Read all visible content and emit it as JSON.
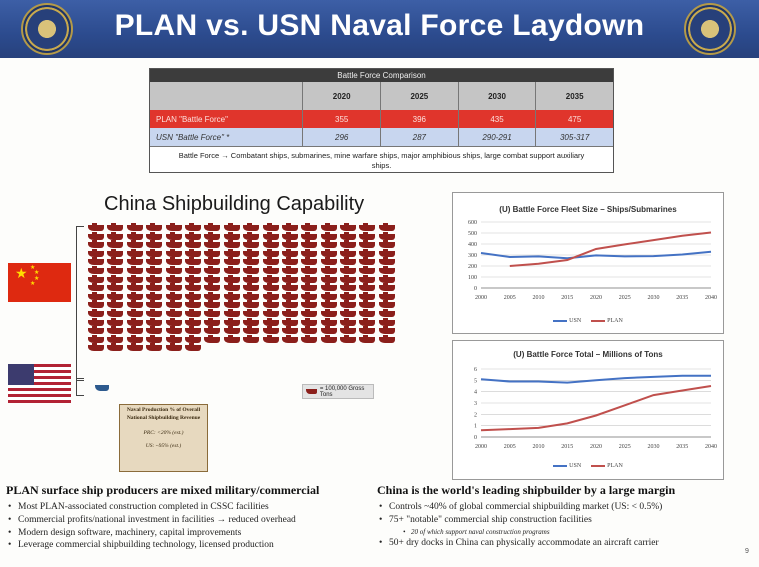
{
  "header": {
    "title": "PLAN vs. USN Naval Force Laydown",
    "accent": "#2c4b8e"
  },
  "comparison": {
    "caption": "Battle Force Comparison",
    "years": [
      "2020",
      "2025",
      "2030",
      "2035"
    ],
    "rows": [
      {
        "label": "PLAN \"Battle Force\"",
        "values": [
          "355",
          "396",
          "435",
          "475"
        ]
      },
      {
        "label": "USN \"Battle Force\" *",
        "values": [
          "296",
          "287",
          "290-291",
          "305-317"
        ]
      }
    ],
    "footnote": "Battle Force → Combatant ships, submarines, mine warfare ships, major amphibious ships, large combat support auxiliary ships."
  },
  "shipbuilding": {
    "title": "China Shipbuilding Capability",
    "china_ship_icons": 230,
    "us_ship_icons": 1,
    "legend": "= 100,000 Gross Tons",
    "production_box": {
      "title": "Naval Production % of Overall National Shipbuilding Revenue",
      "prc": "PRC: <20% (est.)",
      "us": "US: ~95% (est.)"
    }
  },
  "chart_data": [
    {
      "type": "line",
      "title": "(U) Battle Force Fleet Size – Ships/Submarines",
      "x": [
        2000,
        2005,
        2010,
        2015,
        2020,
        2025,
        2030,
        2035,
        2040
      ],
      "ylim": [
        0,
        600
      ],
      "yticks": [
        "600",
        "500",
        "400",
        "300",
        "200",
        "100",
        "0"
      ],
      "xticks": [
        "2000",
        "2005",
        "2010",
        "2015",
        "2020",
        "2025",
        "2030",
        "2035",
        "2040"
      ],
      "series": [
        {
          "name": "USN",
          "color": "#4472c4",
          "values": [
            318,
            282,
            287,
            271,
            296,
            287,
            290,
            305,
            330
          ]
        },
        {
          "name": "PLAN",
          "color": "#c0504d",
          "values": [
            null,
            200,
            220,
            255,
            355,
            396,
            435,
            475,
            505
          ]
        }
      ],
      "legend": "bottom",
      "grid": true
    },
    {
      "type": "line",
      "title": "(U) Battle Force Total – Millions of Tons",
      "x": [
        2000,
        2005,
        2010,
        2015,
        2020,
        2025,
        2030,
        2035,
        2040
      ],
      "ylim": [
        0,
        6
      ],
      "yticks": [
        "6",
        "5",
        "4",
        "3",
        "2",
        "1",
        "0"
      ],
      "xticks": [
        "2000",
        "2005",
        "2010",
        "2015",
        "2020",
        "2025",
        "2030",
        "2035",
        "2040"
      ],
      "series": [
        {
          "name": "USN",
          "color": "#4472c4",
          "values": [
            5.1,
            4.9,
            4.9,
            4.8,
            5.0,
            5.2,
            5.3,
            5.4,
            5.4
          ]
        },
        {
          "name": "PLAN",
          "color": "#c0504d",
          "values": [
            0.6,
            0.7,
            0.8,
            1.2,
            1.9,
            2.8,
            3.7,
            4.1,
            4.5
          ]
        }
      ],
      "legend": "bottom",
      "grid": true
    }
  ],
  "left_column": {
    "heading": "PLAN surface ship producers are mixed military/commercial",
    "bullets": [
      "Most PLAN-associated construction completed in CSSC facilities",
      "Commercial profits/national investment in facilities → reduced overhead",
      "Modern design software, machinery, capital improvements",
      "Leverage commercial shipbuilding technology, licensed production"
    ]
  },
  "right_column": {
    "heading": "China is the world's leading shipbuilder by a large margin",
    "bullets": [
      "Controls ~40% of global commercial shipbuilding market (US: < 0.5%)",
      "75+ \"notable\" commercial ship construction facilities",
      "50+ dry docks in China can physically accommodate an aircraft carrier"
    ],
    "sub_bullet": "20 of which support naval construction programs"
  },
  "page_number": "9"
}
